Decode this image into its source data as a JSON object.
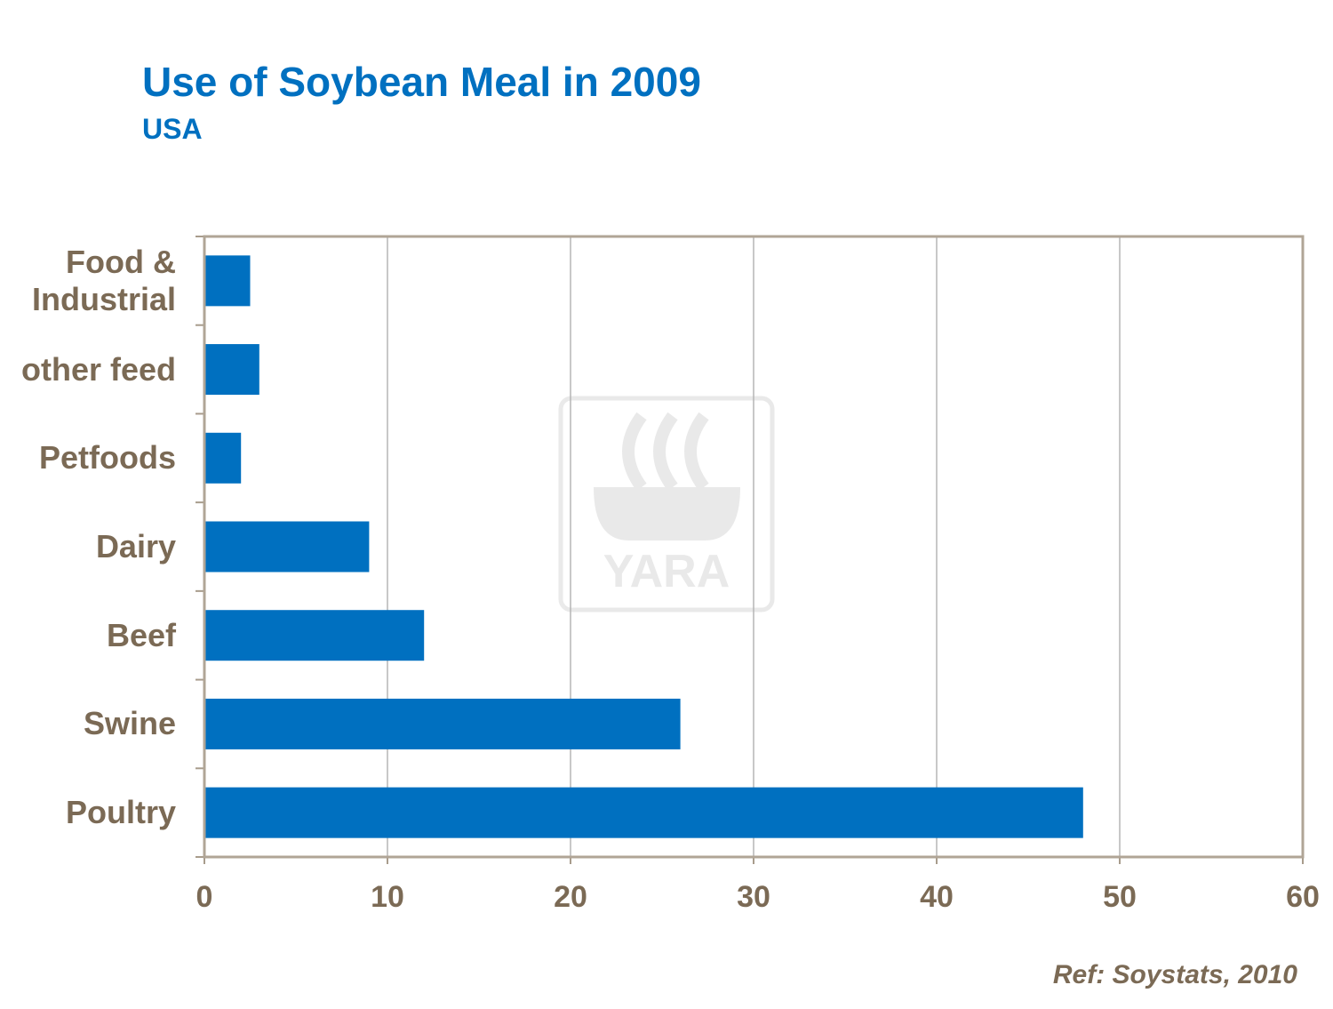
{
  "chart_data": {
    "type": "bar",
    "orientation": "horizontal",
    "title": "Use of Soybean Meal in 2009",
    "subtitle": "USA",
    "categories": [
      "Food & Industrial",
      "other feed",
      "Petfoods",
      "Dairy",
      "Beef",
      "Swine",
      "Poultry"
    ],
    "values": [
      2.5,
      3,
      2,
      9,
      12,
      26,
      48
    ],
    "color": "#0070c0",
    "xlim": [
      0,
      60
    ],
    "xticks": [
      0,
      10,
      20,
      30,
      40,
      50,
      60
    ],
    "grid": true,
    "source": "Ref: Soystats,  2010"
  }
}
